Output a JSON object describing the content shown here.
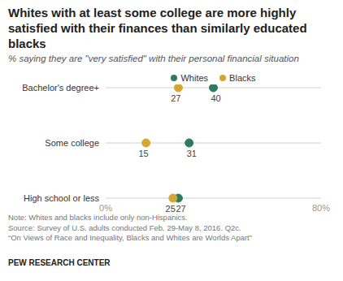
{
  "chart_data": {
    "type": "dot",
    "title": "Whites with at least some college are more highly satisfied with their finances than similarly educated blacks",
    "subtitle": "% saying they are \"very satisfied\" with their personal financial situation",
    "categories": [
      "Bachelor's degree+",
      "Some college",
      "High school or less"
    ],
    "series": [
      {
        "name": "Whites",
        "color": "#2e7b5d",
        "values": [
          40,
          31,
          27
        ]
      },
      {
        "name": "Blacks",
        "color": "#d6a632",
        "values": [
          27,
          15,
          25
        ]
      }
    ],
    "orientation": "horizontal",
    "xlim": [
      0,
      80
    ],
    "xticks": [
      {
        "value": 0,
        "label": "0%"
      },
      {
        "value": 80,
        "label": "80%"
      }
    ],
    "data_labels": true,
    "legend": "top",
    "notes": [
      "Note: Whites and blacks include only non-Hispanics.",
      "Source: Survey of U.S. adults conducted Feb. 29-May 8, 2016. Q2c.",
      "“On Views of Race and Inequality, Blacks and Whites are Worlds Apart”"
    ],
    "source_label": "PEW RESEARCH CENTER"
  }
}
